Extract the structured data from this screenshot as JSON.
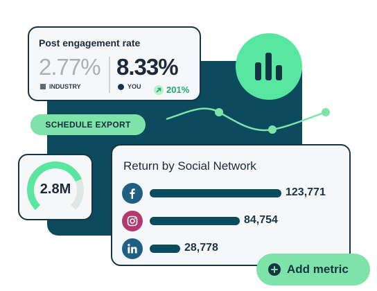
{
  "engagement": {
    "title": "Post engagement rate",
    "industry_value": "2.77%",
    "industry_label": "INDUSTRY",
    "you_value": "8.33%",
    "you_label": "YOU",
    "growth": "201%"
  },
  "schedule_export": {
    "label": "SCHEDULE EXPORT"
  },
  "gauge": {
    "value": "2.8M",
    "fraction": 0.75
  },
  "return_by_network": {
    "title": "Return by Social Network",
    "rows": [
      {
        "network": "facebook",
        "icon": "facebook-icon",
        "value": "123,771",
        "amount": 123771
      },
      {
        "network": "instagram",
        "icon": "instagram-icon",
        "value": "84,754",
        "amount": 84754
      },
      {
        "network": "linkedin",
        "icon": "linkedin-icon",
        "value": "28,778",
        "amount": 28778
      }
    ]
  },
  "add_metric": {
    "label": "Add metric",
    "icon": "plus-icon"
  },
  "colors": {
    "navy": "#0c4a5e",
    "mint": "#7ee3a8",
    "green": "#59e6a0",
    "growth": "#1eaa6a"
  },
  "icons": {
    "chart": "bar-chart-icon",
    "growth": "arrow-up-right-icon"
  }
}
